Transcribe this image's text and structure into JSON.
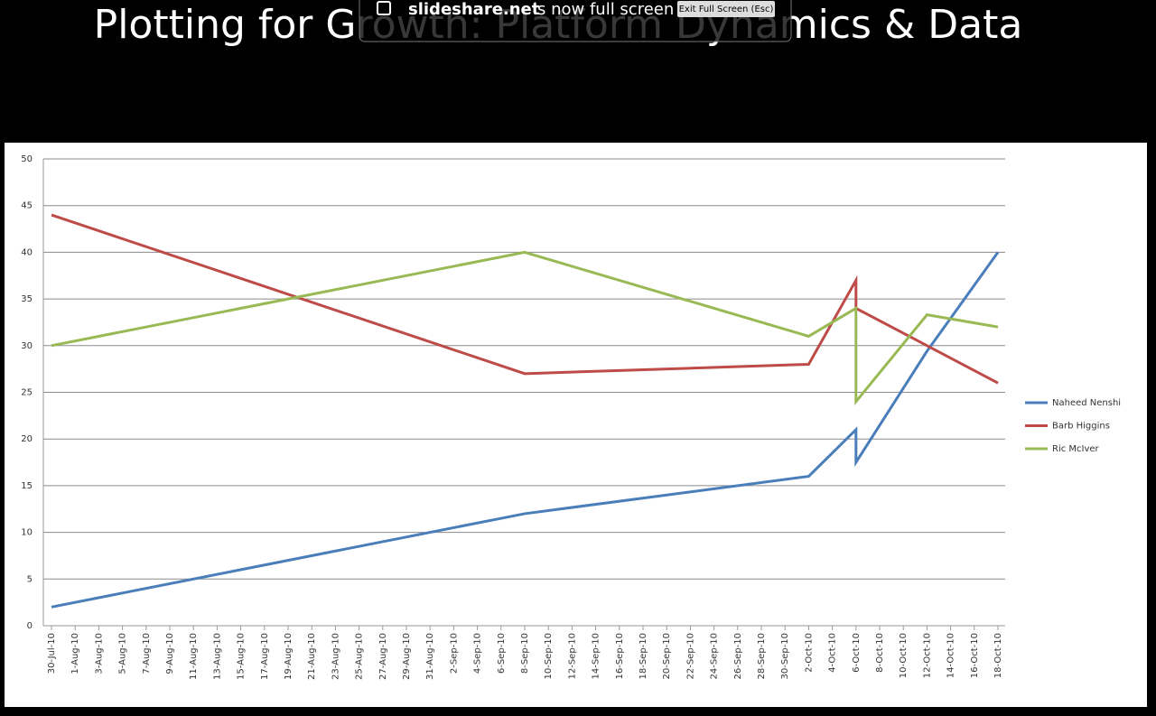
{
  "slide": {
    "title": "Plotting for Growth: Platform Dynamics & Data"
  },
  "banner": {
    "site": "slideshare.net",
    "message": "is now full screen",
    "button": "Exit Full Screen (Esc)"
  },
  "chart_data": {
    "type": "line",
    "x": [
      "30-Jul-10",
      "8-Sep-10",
      "2-Oct-10",
      "6-Oct-10",
      "6-Oct-10",
      "12-Oct-10",
      "18-Oct-10"
    ],
    "series": [
      {
        "name": "Naheed Nenshi",
        "color": "#4a7ebb",
        "values": [
          2,
          12,
          16,
          21,
          17.5,
          29.4,
          40
        ]
      },
      {
        "name": "Barb Higgins",
        "color": "#be4b48",
        "values": [
          44,
          27,
          28,
          37,
          34,
          30,
          26
        ]
      },
      {
        "name": "Ric McIver",
        "color": "#98b954",
        "values": [
          30,
          40,
          31,
          34,
          24,
          33.3,
          32
        ]
      }
    ],
    "ylim": [
      0,
      50
    ],
    "yticks": [
      0,
      5,
      10,
      15,
      20,
      25,
      30,
      35,
      40,
      45,
      50
    ],
    "xticks": [
      "30-Jul-10",
      "1-Aug-10",
      "3-Aug-10",
      "5-Aug-10",
      "7-Aug-10",
      "9-Aug-10",
      "11-Aug-10",
      "13-Aug-10",
      "15-Aug-10",
      "17-Aug-10",
      "19-Aug-10",
      "21-Aug-10",
      "23-Aug-10",
      "25-Aug-10",
      "27-Aug-10",
      "29-Aug-10",
      "31-Aug-10",
      "2-Sep-10",
      "4-Sep-10",
      "6-Sep-10",
      "8-Sep-10",
      "10-Sep-10",
      "12-Sep-10",
      "14-Sep-10",
      "16-Sep-10",
      "18-Sep-10",
      "20-Sep-10",
      "22-Sep-10",
      "24-Sep-10",
      "26-Sep-10",
      "28-Sep-10",
      "30-Sep-10",
      "2-Oct-10",
      "4-Oct-10",
      "6-Oct-10",
      "8-Oct-10",
      "10-Oct-10",
      "12-Oct-10",
      "14-Oct-10",
      "16-Oct-10",
      "18-Oct-10"
    ],
    "grid": true,
    "legend": "right"
  }
}
